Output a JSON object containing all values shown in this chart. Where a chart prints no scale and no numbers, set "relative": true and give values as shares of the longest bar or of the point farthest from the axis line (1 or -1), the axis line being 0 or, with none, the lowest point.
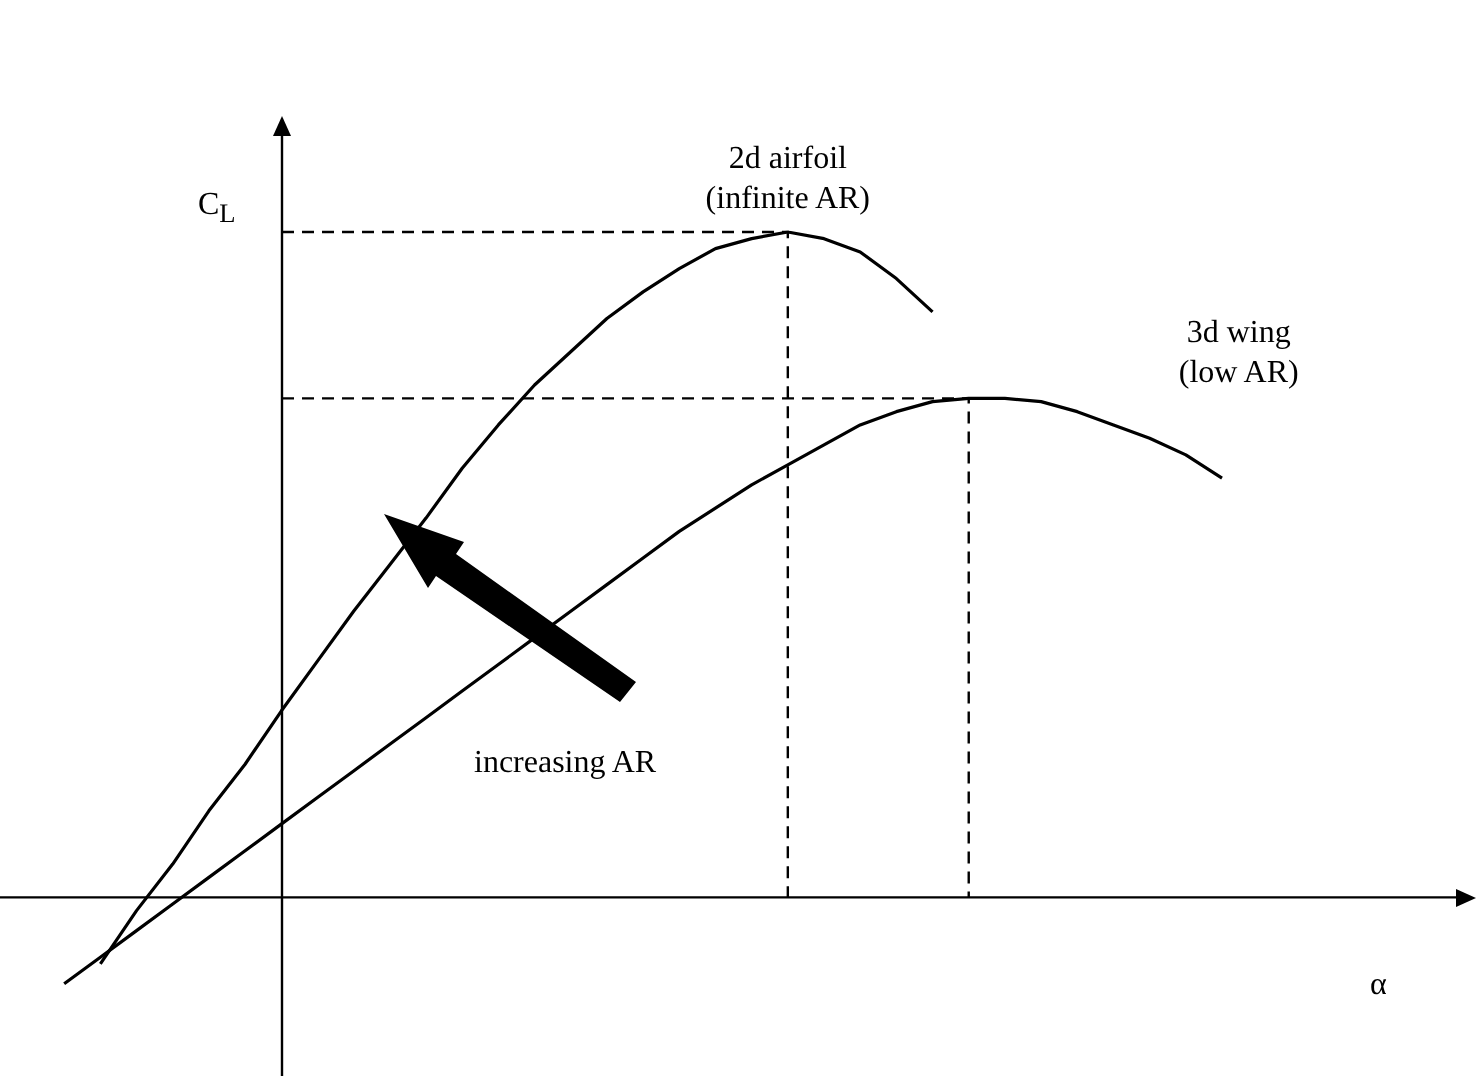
{
  "chart_data": {
    "type": "line",
    "relative": true,
    "xlabel": "α",
    "ylabel": "C$_{L}$",
    "legend": false,
    "marker": "none",
    "categories": [
      null,
      null,
      null,
      null,
      null,
      null,
      null,
      null,
      null,
      null,
      null,
      null,
      null,
      null,
      null,
      null,
      null,
      null,
      null,
      null,
      null,
      null,
      null,
      null,
      null,
      null,
      null,
      null,
      null,
      null,
      null,
      null,
      null,
      null
    ],
    "annotations": [
      "increasing AR"
    ],
    "ref_lines": [
      {
        "axis": "y",
        "value": 1,
        "line_style": "dashed",
        "color": "#000000"
      },
      {
        "axis": "y",
        "value": 0.75,
        "line_style": "dashed",
        "color": "#000000"
      }
    ],
    "series": [
      {
        "name": "2d airfoil\n(infinite AR)",
        "color": "#000000",
        "values": [
          null,
          null,
          -0.1,
          -0.02,
          0.05,
          0.13,
          0.2,
          0.28,
          0.355,
          0.43,
          0.5,
          0.57,
          0.645,
          0.71,
          0.77,
          0.82,
          0.87,
          0.91,
          0.945,
          0.975,
          0.99,
          1,
          0.99,
          0.97,
          0.93,
          0.88,
          null,
          null,
          null,
          null,
          null,
          null,
          null,
          null
        ]
      },
      {
        "name": "3d wing\n(low AR)",
        "color": "#000000",
        "values": [
          null,
          -0.13,
          -0.09,
          -0.05,
          -0.01,
          0.03,
          0.07,
          0.11,
          0.15,
          0.19,
          0.23,
          0.27,
          0.31,
          0.35,
          0.39,
          0.43,
          0.47,
          0.51,
          0.55,
          0.585,
          0.62,
          0.65,
          0.68,
          0.71,
          0.73,
          0.745,
          0.75,
          0.75,
          0.745,
          0.73,
          0.71,
          0.69,
          0.665,
          0.63
        ]
      }
    ]
  }
}
